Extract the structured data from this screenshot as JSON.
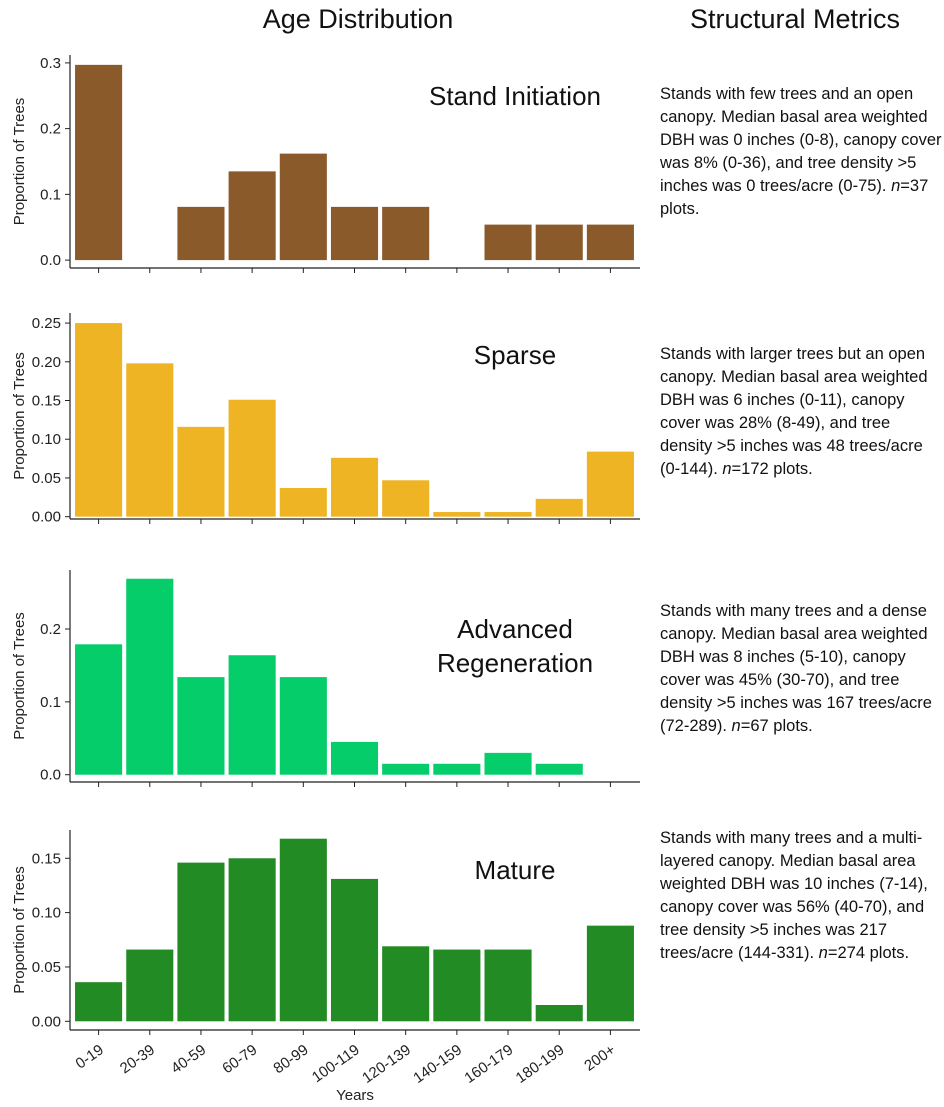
{
  "headers": {
    "left": "Age Distribution",
    "right": "Structural Metrics"
  },
  "chart_data": [
    {
      "type": "bar",
      "title": "Stand Initiation",
      "y_label": "Proportion of Trees",
      "categories": [
        null,
        null,
        null,
        null,
        null,
        null,
        null,
        null,
        null,
        null,
        null
      ],
      "values": [
        0.297,
        0,
        0.081,
        0.135,
        0.162,
        0.081,
        0.081,
        0,
        0.054,
        0.054,
        0.054
      ],
      "color": "#8b5a2b",
      "ylim": [
        -0.012,
        0.312
      ],
      "yticks": [
        {
          "value": 0,
          "label": "0.0"
        },
        0.1,
        0.2,
        0.3
      ],
      "description": {
        "text": "Stands with few trees and an open canopy. Median basal area weighted DBH was 0 inches (0-8), canopy cover was 8% (0-36), and tree density >5 inches was 0 trees/acre (0-75). ",
        "n_symbol": "n",
        "n_text": "=37 plots."
      }
    },
    {
      "type": "bar",
      "title": "Sparse",
      "y_label": "Proportion of Trees",
      "categories": [
        null,
        null,
        null,
        null,
        null,
        null,
        null,
        null,
        null,
        null,
        null
      ],
      "values": [
        0.25,
        0.198,
        0.116,
        0.151,
        0.037,
        0.076,
        0.047,
        0.006,
        0.006,
        0.023,
        0.084
      ],
      "color": "#eeb424",
      "ylim": [
        -0.003,
        0.263
      ],
      "yticks": [
        {
          "value": 0,
          "label": "0.00"
        },
        0.05,
        {
          "value": 0.1,
          "label": "0.10"
        },
        0.15,
        {
          "value": 0.2,
          "label": "0.20"
        },
        0.25
      ],
      "description": {
        "text": "Stands with larger trees but an open canopy. Median basal area weighted DBH was 6 inches (0-11), canopy cover was 28% (8-49), and tree density >5 inches was 48 trees/acre (0-144). ",
        "n_symbol": "n",
        "n_text": "=172 plots."
      }
    },
    {
      "type": "bar",
      "title": "Advanced Regeneration",
      "y_label": "Proportion of Trees",
      "categories": [
        null,
        null,
        null,
        null,
        null,
        null,
        null,
        null,
        null,
        null,
        null
      ],
      "values": [
        0.179,
        0.269,
        0.134,
        0.164,
        0.134,
        0.045,
        0.015,
        0.015,
        0.03,
        0.015,
        0
      ],
      "color": "#04cd6a",
      "ylim": [
        -0.01,
        0.281
      ],
      "yticks": [
        {
          "value": 0,
          "label": "0.0"
        },
        0.1,
        0.2
      ],
      "description": {
        "text": "Stands with many trees and a dense canopy. Median basal area weighted DBH was 8 inches (5-10), canopy cover was 45% (30-70), and tree density >5 inches was 167 trees/acre (72-289). ",
        "n_symbol": "n",
        "n_text": "=67 plots."
      }
    },
    {
      "type": "bar",
      "title": "Mature",
      "y_label": "Proportion of Trees",
      "x_label": "Years",
      "categories": [
        "0-19",
        "20-39",
        "40-59",
        "60-79",
        "80-99",
        "100-119",
        "120-139",
        "140-159",
        "160-179",
        "180-199",
        "200+"
      ],
      "values": [
        0.036,
        0.066,
        0.146,
        0.15,
        0.168,
        0.131,
        0.069,
        0.066,
        0.066,
        0.015,
        0.088
      ],
      "color": "#238b23",
      "ylim": [
        -0.008,
        0.176
      ],
      "yticks": [
        {
          "value": 0,
          "label": "0.00"
        },
        0.05,
        {
          "value": 0.1,
          "label": "0.10"
        },
        0.15
      ],
      "description": {
        "text": "Stands with many trees and a multi-layered canopy. Median basal area weighted DBH was 10 inches (7-14), canopy cover was 56% (40-70), and tree density >5 inches was 217 trees/acre (144-331). ",
        "n_symbol": "n",
        "n_text": "=274 plots."
      }
    }
  ]
}
